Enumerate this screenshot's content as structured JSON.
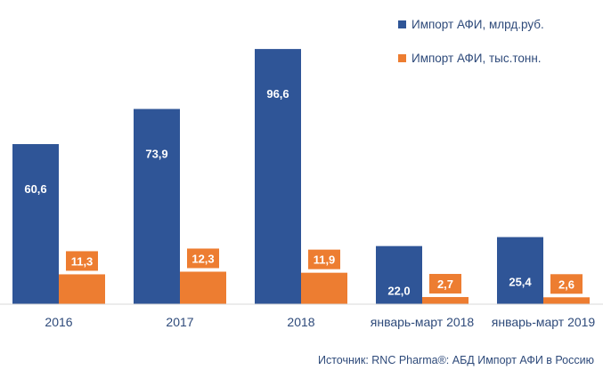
{
  "chart_data": {
    "type": "bar",
    "title": "",
    "xlabel": "",
    "ylabel": "",
    "ylim": [
      0,
      100
    ],
    "grid": false,
    "legend_position": "top-right",
    "categories": [
      "2016",
      "2017",
      "2018",
      "январь-март 2018",
      "январь-март 2019"
    ],
    "series": [
      {
        "name": "Импорт АФИ, млрд.руб.",
        "color": "#2f5597",
        "values": [
          60.6,
          73.9,
          96.6,
          22.0,
          25.4
        ],
        "labels": [
          "60,6",
          "73,9",
          "96,6",
          "22,0",
          "25,4"
        ]
      },
      {
        "name": "Импорт АФИ, тыс.тонн.",
        "color": "#ed7d31",
        "values": [
          11.3,
          12.3,
          11.9,
          2.7,
          2.6
        ],
        "labels": [
          "11,3",
          "12,3",
          "11,9",
          "2,7",
          "2,6"
        ]
      }
    ]
  },
  "source": "Источник: RNC Pharma®: АБД Импорт АФИ в Россию",
  "axis_color": "#d9d9d9"
}
